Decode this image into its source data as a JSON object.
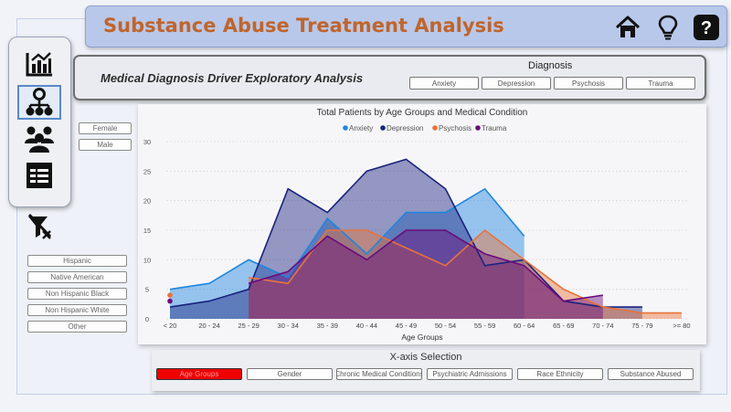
{
  "header": {
    "title": "Substance Abuse Treatment Analysis",
    "icons": [
      "home-icon",
      "lightbulb-icon",
      "help-icon"
    ]
  },
  "sidebar": {
    "icons": [
      "bar-chart-icon",
      "org-chart-icon",
      "people-group-icon",
      "table-list-icon"
    ],
    "active_index": 1
  },
  "filters": {
    "clear_icon": "filter-clear-icon",
    "gender": [
      "Female",
      "Male"
    ],
    "ethnicity": [
      "Hispanic",
      "Native American",
      "Non Hispanic Black",
      "Non Hispanic White",
      "Other"
    ]
  },
  "diagnosis_panel": {
    "title": "Medical Diagnosis Driver Exploratory Analysis",
    "label": "Diagnosis",
    "options": [
      "Anxiety",
      "Depression",
      "Psychosis",
      "Trauma"
    ]
  },
  "x_axis_selection": {
    "label": "X-axis Selection",
    "options": [
      "Age Groups",
      "Gender",
      "Chronic Medical Conditions",
      "Psychiatric Admissions",
      "Race Ethnicity",
      "Substance Abused"
    ],
    "selected_index": 0,
    "selected_color": "#ee0000"
  },
  "chart_data": {
    "type": "area",
    "title": "Total Patients by Age Groups and Medical Condition",
    "xlabel": "Age Groups",
    "ylabel": "",
    "ylim": [
      0,
      30
    ],
    "yticks": [
      0,
      5,
      10,
      15,
      20,
      25,
      30
    ],
    "grid": true,
    "legend_position": "top-center",
    "categories": [
      "< 20",
      "20 - 24",
      "25 - 29",
      "30 - 34",
      "35 - 39",
      "40 - 44",
      "45 - 49",
      "50 - 54",
      "55 - 59",
      "60 - 64",
      "65 - 69",
      "70 - 74",
      "75 - 79",
      ">= 80"
    ],
    "series": [
      {
        "name": "Anxiety",
        "color": "#1f86e0",
        "values": [
          5,
          6,
          10,
          7,
          17,
          11,
          18,
          18,
          22,
          14,
          null,
          null,
          null,
          null
        ]
      },
      {
        "name": "Depression",
        "color": "#1a237e",
        "values": [
          2,
          3,
          5,
          22,
          18,
          25,
          27,
          22,
          9,
          10,
          3,
          2,
          2,
          null
        ]
      },
      {
        "name": "Psychosis",
        "color": "#e8733a",
        "values": [
          4,
          null,
          7,
          6,
          15,
          15,
          12,
          9,
          15,
          10,
          5,
          2,
          1,
          1
        ]
      },
      {
        "name": "Trauma",
        "color": "#6a0c7c",
        "values": [
          3,
          null,
          6,
          8,
          14,
          10,
          15,
          15,
          11,
          9,
          3,
          4,
          null,
          null
        ]
      }
    ]
  }
}
